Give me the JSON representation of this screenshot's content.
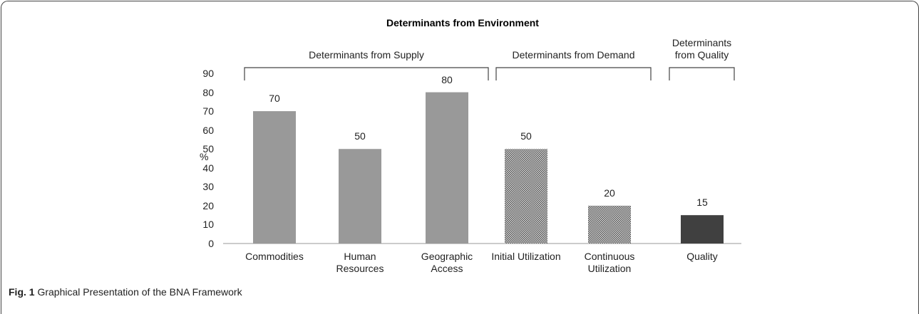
{
  "chart_data": {
    "type": "bar",
    "title": "Determinants from Environment",
    "y_label": "%",
    "categories": [
      "Commodities",
      "Human\nResources",
      "Geographic\nAccess",
      "Initial Utilization",
      "Continuous\nUtilization",
      "Quality"
    ],
    "series": [
      {
        "name": "Determinants from Supply",
        "color": "#999999",
        "values": [
          70,
          50,
          80,
          null,
          null,
          null
        ]
      },
      {
        "name": "Determinants from Demand",
        "color": "#7a7a7a",
        "pattern": "dots",
        "values": [
          null,
          null,
          null,
          50,
          20,
          null
        ]
      },
      {
        "name": "Determinants\nfrom Quality",
        "color": "#404040",
        "values": [
          null,
          null,
          null,
          null,
          null,
          15
        ]
      }
    ],
    "ylim": [
      0,
      90
    ],
    "yticks": [
      0,
      10,
      20,
      30,
      40,
      50,
      60,
      70,
      80,
      90
    ],
    "grid": false,
    "caption_label": "Fig. 1",
    "caption": "Graphical Presentation of the BNA Framework"
  }
}
